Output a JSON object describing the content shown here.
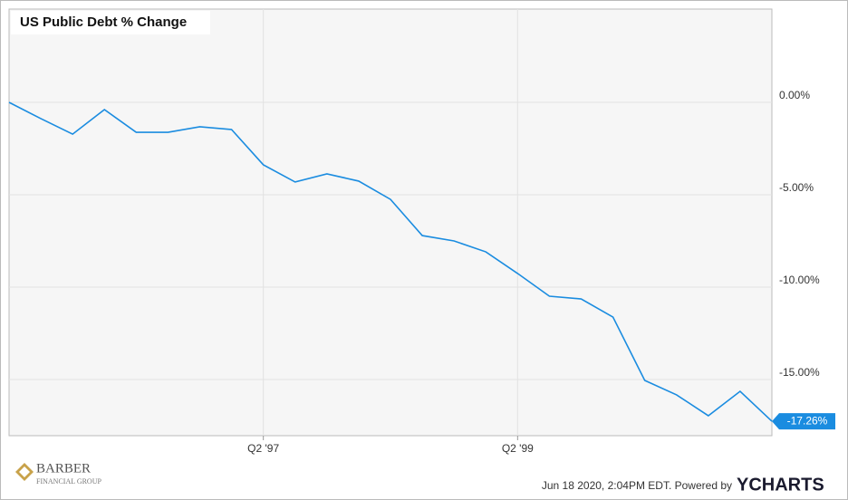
{
  "chart_data": {
    "type": "line",
    "title": "US Public Debt % Change",
    "categories": [
      null,
      null,
      null,
      null,
      null,
      null,
      null,
      null,
      "Q2 '97",
      null,
      null,
      null,
      null,
      null,
      null,
      null,
      "Q2 '99",
      null,
      null,
      null,
      null,
      null,
      null,
      null,
      null
    ],
    "series": [
      {
        "name": "US Public Debt % Change",
        "color": "#1a8ce0",
        "values": [
          0,
          -0.88,
          -1.72,
          -0.39,
          -1.62,
          -1.62,
          -1.32,
          -1.47,
          -3.38,
          -4.31,
          -3.87,
          -4.26,
          -5.25,
          -7.21,
          -7.5,
          -8.09,
          -9.26,
          -10.49,
          -10.64,
          -11.62,
          -15.05,
          -15.83,
          -16.96,
          -15.64,
          -17.26
        ],
        "value_labels": [
          null,
          null,
          null,
          null,
          null,
          null,
          null,
          null,
          null,
          null,
          null,
          null,
          null,
          null,
          null,
          null,
          null,
          null,
          null,
          null,
          null,
          null,
          null,
          null,
          "-17.26%"
        ]
      }
    ],
    "ylim": [
      -18.04,
      5.05
    ],
    "yticks": [
      {
        "value": 0,
        "label": "0.00%"
      },
      {
        "value": -5,
        "label": "-5.00%"
      },
      {
        "value": -10,
        "label": "-10.00%"
      },
      {
        "value": -15,
        "label": "-15.00%"
      }
    ],
    "grid": true
  },
  "footer": {
    "logo_name": "BARBER",
    "logo_sub": "FINANCIAL GROUP",
    "timestamp": "Jun 18 2020, 2:04PM EDT.  Powered by",
    "brand": "YCHARTS"
  }
}
